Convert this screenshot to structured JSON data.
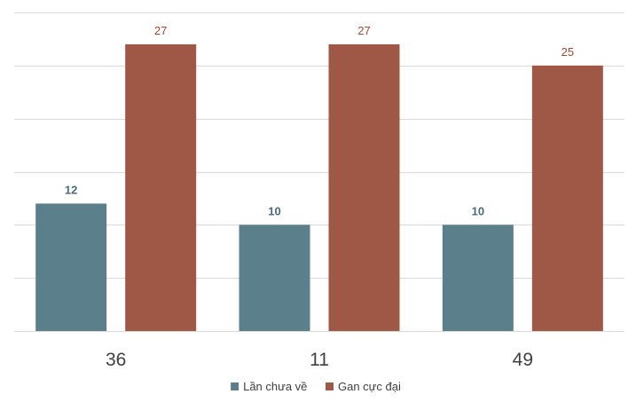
{
  "chart_data": {
    "type": "bar",
    "categories": [
      "36",
      "11",
      "49"
    ],
    "series": [
      {
        "name": "Lần chưa về",
        "values": [
          12,
          10,
          10
        ],
        "color": "#5b808b",
        "label_color": "#4a6b78"
      },
      {
        "name": "Gan cực đại",
        "values": [
          27,
          27,
          25
        ],
        "color": "#a05846",
        "label_color": "#9a4a36"
      }
    ],
    "ylim": [
      0,
      30
    ],
    "grid": true,
    "legend": "bottom-center",
    "title": "",
    "xlabel": "",
    "ylabel": ""
  }
}
